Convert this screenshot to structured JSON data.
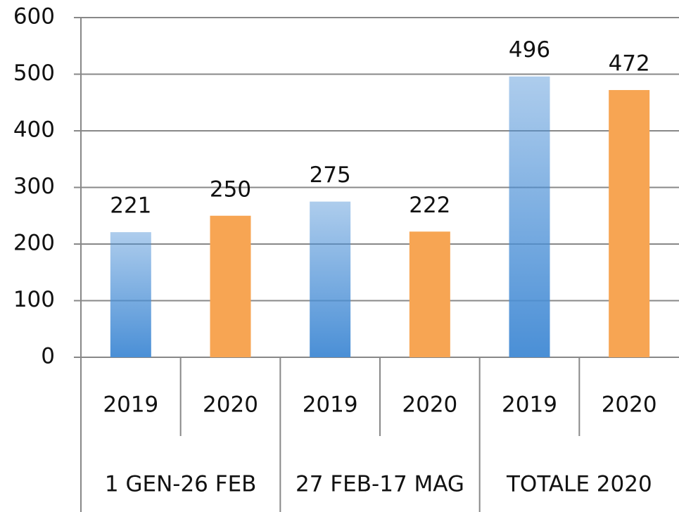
{
  "chart_data": {
    "type": "bar",
    "categories": [
      "2019",
      "2020",
      "2019",
      "2020",
      "2019",
      "2020"
    ],
    "groups": [
      "1 GEN-26 FEB",
      "27 FEB-17 MAG",
      "TOTALE 2020"
    ],
    "values": [
      221,
      250,
      275,
      222,
      496,
      472
    ],
    "bar_colors": [
      "#4a8fd6",
      "#f7a553",
      "#4a8fd6",
      "#f7a553",
      "#4a8fd6",
      "#f7a553"
    ],
    "bar_gradient": [
      true,
      false,
      true,
      false,
      true,
      false
    ],
    "ylim": [
      0,
      600
    ],
    "yticks": [
      0,
      100,
      200,
      300,
      400,
      500,
      600
    ],
    "grid": true
  }
}
